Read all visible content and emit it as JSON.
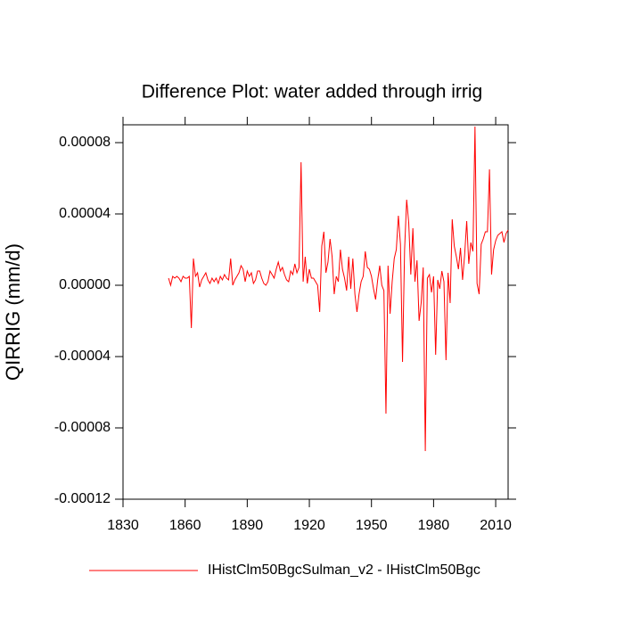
{
  "chart_data": {
    "type": "line",
    "title": "Difference Plot: water added through irrig",
    "y_label": "QIRRIG  (mm/d)",
    "x": [
      1852,
      1853,
      1854,
      1855,
      1856,
      1857,
      1858,
      1859,
      1860,
      1861,
      1862,
      1863,
      1864,
      1865,
      1866,
      1867,
      1868,
      1869,
      1870,
      1871,
      1872,
      1873,
      1874,
      1875,
      1876,
      1877,
      1878,
      1879,
      1880,
      1881,
      1882,
      1883,
      1884,
      1885,
      1886,
      1887,
      1888,
      1889,
      1890,
      1891,
      1892,
      1893,
      1894,
      1895,
      1896,
      1897,
      1898,
      1899,
      1900,
      1901,
      1902,
      1903,
      1904,
      1905,
      1906,
      1907,
      1908,
      1909,
      1910,
      1911,
      1912,
      1913,
      1914,
      1915,
      1916,
      1917,
      1918,
      1919,
      1920,
      1921,
      1922,
      1923,
      1924,
      1925,
      1926,
      1927,
      1928,
      1929,
      1930,
      1931,
      1932,
      1933,
      1934,
      1935,
      1936,
      1937,
      1938,
      1939,
      1940,
      1941,
      1942,
      1943,
      1944,
      1945,
      1946,
      1947,
      1948,
      1949,
      1950,
      1951,
      1952,
      1953,
      1954,
      1955,
      1956,
      1957,
      1958,
      1959,
      1960,
      1961,
      1962,
      1963,
      1964,
      1965,
      1966,
      1967,
      1968,
      1969,
      1970,
      1971,
      1972,
      1973,
      1974,
      1975,
      1976,
      1977,
      1978,
      1979,
      1980,
      1981,
      1982,
      1983,
      1984,
      1985,
      1986,
      1987,
      1988,
      1989,
      1990,
      1991,
      1992,
      1993,
      1994,
      1995,
      1996,
      1997,
      1998,
      1999,
      2000,
      2001,
      2002,
      2003,
      2004,
      2005,
      2006,
      2007,
      2008,
      2009,
      2010,
      2011,
      2012,
      2013,
      2014,
      2015,
      2016
    ],
    "series": [
      {
        "name": "IHistClm50BgcSulman_v2 - IHistClm50Bgc",
        "color": "#ff0000",
        "values": [
          4e-06,
          0,
          5e-06,
          4e-06,
          5e-06,
          4e-06,
          2e-06,
          5e-06,
          4e-06,
          4e-06,
          5e-06,
          -2.4e-05,
          1.5e-05,
          5e-06,
          7e-06,
          -1e-06,
          3e-06,
          5e-06,
          7e-06,
          3e-06,
          1e-06,
          4e-06,
          2e-06,
          4e-06,
          1e-06,
          5e-06,
          3e-06,
          6e-06,
          4e-06,
          3e-06,
          1.5e-05,
          0,
          3e-06,
          5e-06,
          7e-06,
          1.1e-05,
          9e-06,
          2e-06,
          8e-06,
          5e-06,
          7e-06,
          1e-06,
          3e-06,
          8e-06,
          8e-06,
          4e-06,
          1e-06,
          0,
          2e-06,
          8e-06,
          6e-06,
          4e-06,
          9e-06,
          1.3e-05,
          8e-06,
          1e-05,
          6e-06,
          3e-06,
          2e-06,
          8e-06,
          6e-06,
          1.2e-05,
          7e-06,
          1e-05,
          6.9e-05,
          2e-06,
          1.6e-05,
          1e-06,
          9e-06,
          4e-06,
          4e-06,
          2e-06,
          0,
          -1.5e-05,
          2.2e-05,
          3e-05,
          7e-06,
          1.3e-05,
          2.6e-05,
          1.6e-05,
          -5e-06,
          5e-06,
          2e-06,
          2e-05,
          9e-06,
          4e-06,
          -3e-06,
          1.6e-05,
          -2e-06,
          1.5e-05,
          -5e-06,
          -1.5e-05,
          -5e-06,
          2e-06,
          5e-06,
          1.9e-05,
          1e-05,
          9e-06,
          5e-06,
          -2e-06,
          -8e-06,
          3e-06,
          1.1e-05,
          0,
          -3e-06,
          -7.2e-05,
          1.1e-05,
          -1.6e-05,
          2e-06,
          1.5e-05,
          2e-05,
          3.9e-05,
          2.3e-05,
          -4.3e-05,
          2e-05,
          4.8e-05,
          3.5e-05,
          6e-06,
          3.2e-05,
          2e-06,
          1.4e-05,
          -2e-05,
          -1e-05,
          1e-05,
          -9.3e-05,
          4e-06,
          6e-06,
          -4e-06,
          5e-06,
          -3.9e-05,
          3e-06,
          -2e-06,
          8e-06,
          2e-06,
          -4.2e-05,
          7e-06,
          -1e-05,
          3.7e-05,
          2.2e-05,
          1.6e-05,
          9e-06,
          2.1e-05,
          3e-06,
          1.7e-05,
          3.6e-05,
          1.2e-05,
          2.4e-05,
          1.9e-05,
          8.9e-05,
          1e-06,
          -5e-06,
          2.3e-05,
          2.6e-05,
          3e-05,
          3e-05,
          6.5e-05,
          6e-06,
          2e-05,
          2.5e-05,
          2.8e-05,
          2.9e-05,
          3e-05,
          2.4e-05,
          2.9e-05,
          3.1e-05
        ]
      }
    ],
    "xlim": [
      1830,
      2016
    ],
    "xticks": [
      1830,
      1860,
      1890,
      1920,
      1950,
      1980,
      2010
    ],
    "ylim": [
      -0.00012,
      9e-05
    ],
    "yticks": [
      {
        "value": -0.00012,
        "label": "-0.00012"
      },
      {
        "value": -8e-05,
        "label": "-0.00008"
      },
      {
        "value": -4e-05,
        "label": "-0.00004"
      },
      {
        "value": 0,
        "label": "0.00000"
      },
      {
        "value": 4e-05,
        "label": "0.00004"
      },
      {
        "value": 8e-05,
        "label": "0.00008"
      }
    ],
    "grid": false
  }
}
